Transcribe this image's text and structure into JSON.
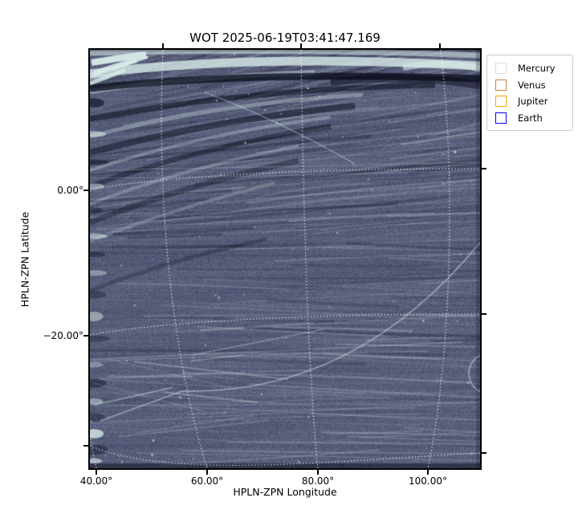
{
  "chart_data": {
    "type": "heatmap",
    "subtype": "sky-image-with-curvilinear-wcs-grid",
    "title": "WOT 2025-06-19T03:41:47.169",
    "xlabel": "HPLN-ZPN Longitude",
    "ylabel": "HPLN-ZPN Latitude",
    "x_ticks": [
      {
        "label": "40.00°",
        "value": 40
      },
      {
        "label": "60.00°",
        "value": 60
      },
      {
        "label": "80.00°",
        "value": 80
      },
      {
        "label": "100.00°",
        "value": 100
      }
    ],
    "y_ticks": [
      {
        "label": "0.00°",
        "value": 0
      },
      {
        "label": "−20.00°",
        "value": -20
      }
    ],
    "xlim": [
      38.8,
      109.5
    ],
    "ylim": [
      -38.5,
      19.3
    ],
    "grid": {
      "visible": true,
      "style": "dotted",
      "color": "#ffffff"
    },
    "legend": {
      "position": "outside-upper-right",
      "entries": [
        {
          "label": "Mercury",
          "color": "#d9d9d9"
        },
        {
          "label": "Venus",
          "color": "#cd7f3f"
        },
        {
          "label": "Jupiter",
          "color": "#ffa500"
        },
        {
          "label": "Earth",
          "color": "#0000ff"
        }
      ]
    },
    "image": {
      "description": "Greyscale-blue heliospheric imager frame (WISPR-like): slate blue-purple noisy field crossed by faint pale streaks; bright white wisps and dark black bands along the top and left edges; thin curved bright streaks mid-field; white dotted HPLN-ZPN graticule.",
      "palette": {
        "base": "#575d7a",
        "bright_streak": "#dceeec",
        "dark_band": "#0c0e1c",
        "grid": "#ffffff"
      }
    }
  }
}
